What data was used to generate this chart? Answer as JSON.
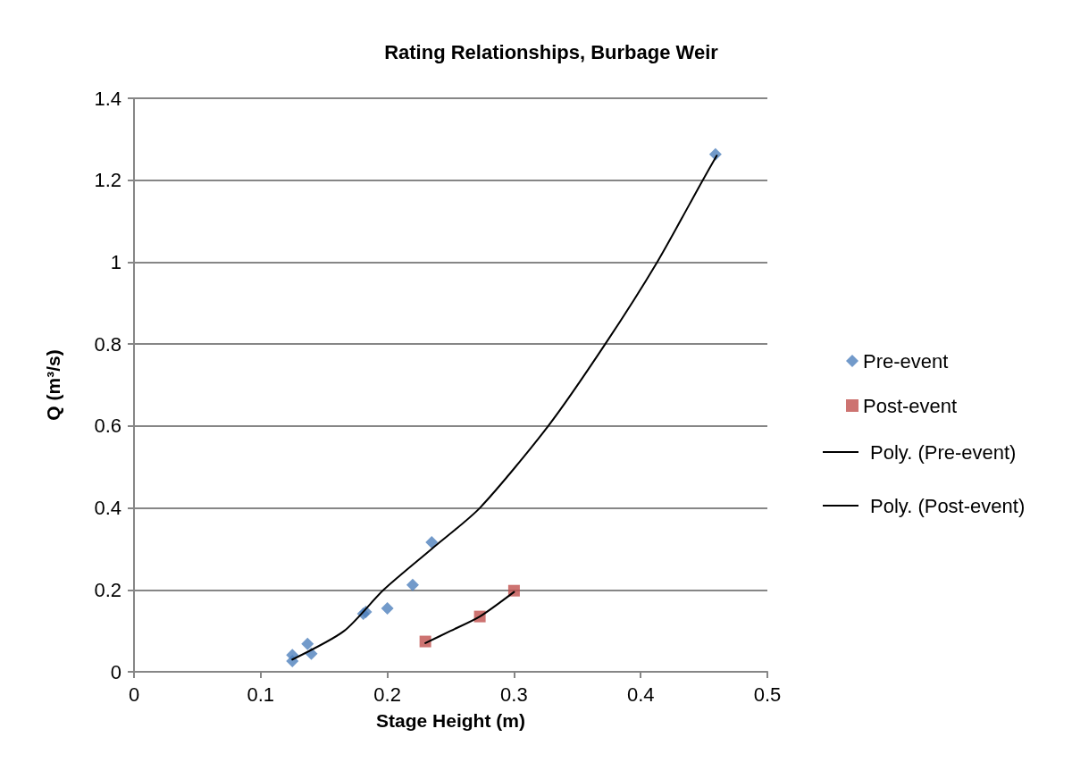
{
  "chart_data": {
    "type": "scatter",
    "title": "Rating Relationships, Burbage Weir",
    "xlabel": "Stage Height (m)",
    "ylabel": "Q (m³/s)",
    "xlim": [
      0,
      0.5
    ],
    "xticks": [
      0,
      0.1,
      0.2,
      0.3,
      0.4,
      0.5
    ],
    "ylim": [
      0,
      1.4
    ],
    "yticks": [
      0,
      0.2,
      0.4,
      0.6,
      0.8,
      1,
      1.2,
      1.4
    ],
    "grid": "y",
    "legend": "right",
    "series": [
      {
        "name": "Pre-event",
        "type": "scatter",
        "marker": "diamond",
        "color": "#4f81bd",
        "x": [
          0.125,
          0.125,
          0.137,
          0.14,
          0.181,
          0.183,
          0.2,
          0.22,
          0.235,
          0.459
        ],
        "values": [
          0.026,
          0.041,
          0.068,
          0.044,
          0.142,
          0.146,
          0.155,
          0.212,
          0.316,
          1.263
        ]
      },
      {
        "name": "Post-event",
        "type": "scatter",
        "marker": "square",
        "color": "#c0504d",
        "x": [
          0.23,
          0.273,
          0.3
        ],
        "values": [
          0.074,
          0.135,
          0.198
        ]
      },
      {
        "name": "Poly. (Pre-event)",
        "type": "line",
        "marker": "none",
        "color": "#000000",
        "x": [
          0.125,
          0.166,
          0.197,
          0.235,
          0.273,
          0.327,
          0.372,
          0.413,
          0.449,
          0.46
        ],
        "values": [
          0.03,
          0.1,
          0.2,
          0.3,
          0.4,
          0.6,
          0.8,
          1.0,
          1.2,
          1.26
        ]
      },
      {
        "name": "Poly. (Post-event)",
        "type": "line",
        "marker": "none",
        "color": "#000000",
        "x": [
          0.23,
          0.25,
          0.273,
          0.3
        ],
        "values": [
          0.07,
          0.1,
          0.135,
          0.195
        ]
      }
    ]
  }
}
